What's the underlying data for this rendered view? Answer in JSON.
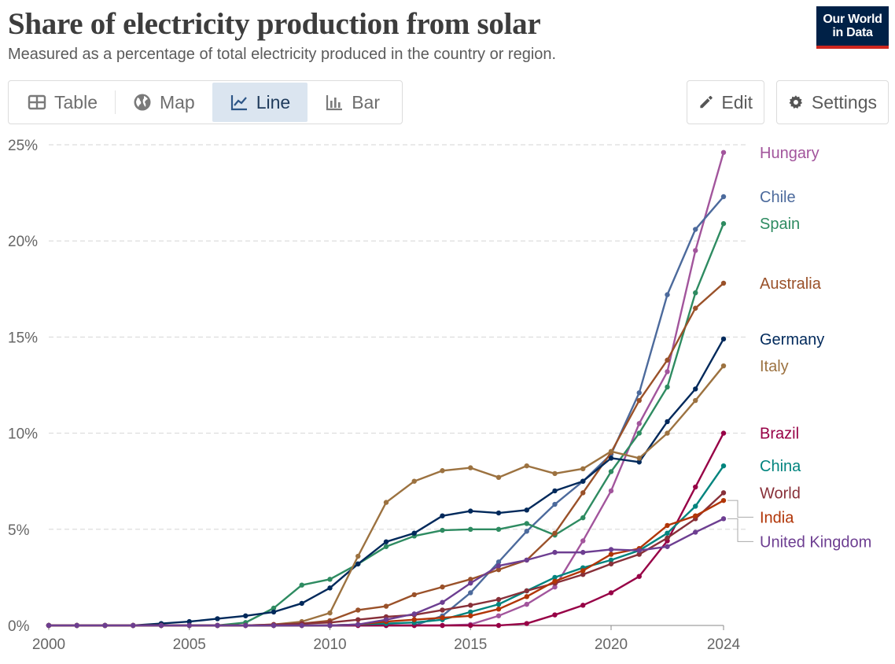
{
  "header": {
    "title": "Share of electricity production from solar",
    "subtitle": "Measured as a percentage of total electricity produced in the country or region.",
    "logo_line1": "Our World",
    "logo_line2": "in Data"
  },
  "tabs": [
    {
      "label": "Table",
      "icon": "table-icon",
      "active": false
    },
    {
      "label": "Map",
      "icon": "globe-icon",
      "active": false
    },
    {
      "label": "Line",
      "icon": "line-chart-icon",
      "active": true
    },
    {
      "label": "Bar",
      "icon": "bar-chart-icon",
      "active": false
    }
  ],
  "actions": {
    "edit_label": "Edit",
    "settings_label": "Settings"
  },
  "colors": {
    "accent": "#002147",
    "logo_stripe": "#ce261e",
    "active_tab_bg": "#dbe5f0"
  },
  "chart_data": {
    "type": "line",
    "title": "Share of electricity production from solar",
    "xlabel": "",
    "ylabel": "",
    "xlim": [
      2000,
      2024
    ],
    "ylim": [
      0,
      25
    ],
    "x_ticks": [
      2000,
      2005,
      2010,
      2015,
      2020,
      2024
    ],
    "y_ticks": [
      0,
      5,
      10,
      15,
      20,
      25
    ],
    "y_tick_labels": [
      "0%",
      "5%",
      "10%",
      "15%",
      "20%",
      "25%"
    ],
    "x": [
      2000,
      2001,
      2002,
      2003,
      2004,
      2005,
      2006,
      2007,
      2008,
      2009,
      2010,
      2011,
      2012,
      2013,
      2014,
      2015,
      2016,
      2017,
      2018,
      2019,
      2020,
      2021,
      2022,
      2023,
      2024
    ],
    "series": [
      {
        "name": "Hungary",
        "color": "#a2559c",
        "values": [
          0,
          0,
          0,
          0,
          0,
          0,
          0,
          0,
          0,
          0,
          0,
          0,
          0,
          0,
          0,
          0.05,
          0.5,
          1.1,
          2.0,
          4.4,
          7.0,
          10.5,
          13.2,
          19.5,
          24.6
        ]
      },
      {
        "name": "Chile",
        "color": "#4c6a9c",
        "values": [
          0,
          0,
          0,
          0,
          0,
          0,
          0,
          0,
          0,
          0,
          0,
          0,
          0,
          0,
          0.5,
          1.7,
          3.3,
          4.9,
          6.3,
          7.5,
          8.9,
          12.1,
          17.2,
          20.6,
          22.3
        ]
      },
      {
        "name": "Spain",
        "color": "#2e8b61",
        "values": [
          0,
          0,
          0,
          0,
          0,
          0,
          0,
          0.15,
          0.9,
          2.1,
          2.4,
          3.2,
          4.1,
          4.65,
          4.95,
          5.0,
          5.0,
          5.3,
          4.7,
          5.6,
          8.0,
          10.0,
          12.4,
          17.3,
          20.9
        ]
      },
      {
        "name": "Australia",
        "color": "#9a5129",
        "values": [
          0,
          0,
          0,
          0,
          0,
          0,
          0,
          0,
          0,
          0.1,
          0.25,
          0.8,
          1.0,
          1.6,
          2.0,
          2.4,
          2.9,
          3.4,
          4.8,
          6.9,
          9.0,
          11.7,
          13.8,
          16.5,
          17.8
        ]
      },
      {
        "name": "Germany",
        "color": "#00295b",
        "values": [
          0,
          0,
          0,
          0,
          0.1,
          0.2,
          0.35,
          0.5,
          0.7,
          1.15,
          1.95,
          3.2,
          4.35,
          4.8,
          5.7,
          5.95,
          5.85,
          6.0,
          7.0,
          7.5,
          8.7,
          8.5,
          10.6,
          12.3,
          14.9
        ]
      },
      {
        "name": "Italy",
        "color": "#9c7240",
        "values": [
          0,
          0,
          0,
          0,
          0,
          0,
          0,
          0,
          0.05,
          0.2,
          0.65,
          3.6,
          6.4,
          7.5,
          8.05,
          8.2,
          7.7,
          8.3,
          7.9,
          8.15,
          9.05,
          8.7,
          10.0,
          11.7,
          13.5
        ]
      },
      {
        "name": "Brazil",
        "color": "#970046",
        "values": [
          0,
          0,
          0,
          0,
          0,
          0,
          0,
          0,
          0,
          0,
          0,
          0,
          0,
          0,
          0,
          0,
          0,
          0.1,
          0.55,
          1.05,
          1.7,
          2.55,
          4.4,
          7.2,
          10.0
        ]
      },
      {
        "name": "China",
        "color": "#00847e",
        "values": [
          0,
          0,
          0,
          0,
          0,
          0,
          0,
          0,
          0,
          0,
          0,
          0.05,
          0.1,
          0.15,
          0.3,
          0.7,
          1.1,
          1.8,
          2.5,
          3.0,
          3.4,
          3.9,
          4.8,
          6.2,
          8.3
        ]
      },
      {
        "name": "World",
        "color": "#883039",
        "values": [
          0,
          0,
          0,
          0,
          0,
          0,
          0,
          0,
          0.05,
          0.1,
          0.15,
          0.3,
          0.45,
          0.55,
          0.8,
          1.05,
          1.35,
          1.8,
          2.2,
          2.65,
          3.2,
          3.7,
          4.55,
          5.55,
          6.9
        ]
      },
      {
        "name": "India",
        "color": "#b13507",
        "values": [
          0,
          0,
          0,
          0,
          0,
          0,
          0,
          0,
          0,
          0,
          0,
          0.05,
          0.2,
          0.3,
          0.4,
          0.5,
          0.85,
          1.5,
          2.3,
          2.85,
          3.7,
          4.0,
          5.2,
          5.7,
          6.5
        ]
      },
      {
        "name": "United Kingdom",
        "color": "#6d3e91",
        "values": [
          0,
          0,
          0,
          0,
          0,
          0,
          0,
          0,
          0,
          0,
          0,
          0.05,
          0.3,
          0.6,
          1.2,
          2.2,
          3.1,
          3.4,
          3.8,
          3.8,
          3.95,
          3.9,
          4.1,
          4.85,
          5.55
        ]
      }
    ]
  }
}
